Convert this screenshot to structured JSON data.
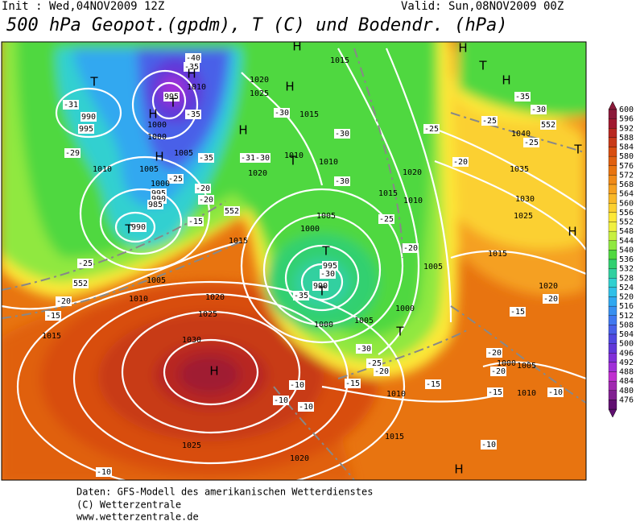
{
  "header": {
    "init": "Init : Wed,04NOV2009 12Z",
    "valid": "Valid: Sun,08NOV2009 00Z",
    "title": "500 hPa Geopot.(gpdm), T (C) und Bodendr. (hPa)"
  },
  "footer": {
    "line1": "Daten: GFS-Modell des amerikanischen Wetterdienstes",
    "line2": "(C) Wetterzentrale",
    "line3": "www.wetterzentrale.de"
  },
  "colorbar": {
    "levels": [
      600,
      596,
      592,
      588,
      584,
      580,
      576,
      572,
      568,
      564,
      560,
      556,
      552,
      548,
      544,
      540,
      536,
      532,
      528,
      524,
      520,
      516,
      512,
      508,
      504,
      500,
      496,
      492,
      488,
      484,
      480,
      476
    ],
    "colors": [
      "#8b1a3a",
      "#a01a30",
      "#b82820",
      "#c83a18",
      "#d84e10",
      "#e06010",
      "#e87410",
      "#f08a18",
      "#f5a020",
      "#f8b828",
      "#fbd030",
      "#fde838",
      "#f0f040",
      "#c8f040",
      "#90e840",
      "#50d840",
      "#30d070",
      "#30d0a0",
      "#30d0d0",
      "#30c0e8",
      "#30a8f0",
      "#3890f0",
      "#4078f0",
      "#4860e8",
      "#5048e0",
      "#6038d8",
      "#8030d8",
      "#a030d8",
      "#c030d0",
      "#a028b0",
      "#802090",
      "#601070"
    ]
  },
  "map_labels": [
    "T",
    "-31",
    "990",
    "995",
    "-29",
    "1010",
    "1005",
    "H",
    "1000",
    "1000",
    "H",
    "995",
    "T",
    "-40",
    "-35",
    "1010",
    "-35",
    "H",
    "1005",
    "-35",
    "-25",
    "1000",
    "995",
    "990",
    "985",
    "990",
    "T",
    "-20",
    "-20",
    "552",
    "-15",
    "H",
    "1020",
    "1025",
    "H",
    "-30",
    "-31",
    "-30",
    "1020",
    "1015",
    "1010",
    "T",
    "1010",
    "-30",
    "-30",
    "1015",
    "H",
    "H",
    "T",
    "H",
    "-35",
    "-30",
    "-25",
    "-25",
    "552",
    "1040",
    "-25",
    "T",
    "-20",
    "1035",
    "1020",
    "1015",
    "1010",
    "1030",
    "1025",
    "-25",
    "H",
    "1015",
    "-20",
    "1005",
    "1005",
    "1000",
    "T",
    "995",
    "-30",
    "990",
    "T",
    "-35",
    "1000",
    "1005",
    "1000",
    "T",
    "-30",
    "-25",
    "-20",
    "-25",
    "552",
    "-20",
    "-15",
    "1015",
    "1005",
    "1010",
    "1015",
    "1020",
    "1025",
    "1030",
    "H",
    "-15",
    "-10",
    "-10",
    "1010",
    "-15",
    "1020",
    "-20",
    "-15",
    "-20",
    "-20",
    "1000",
    "1005",
    "-15",
    "1010",
    "-10",
    "-10",
    "H",
    "1015",
    "1020",
    "1025",
    "-10",
    "-10"
  ]
}
